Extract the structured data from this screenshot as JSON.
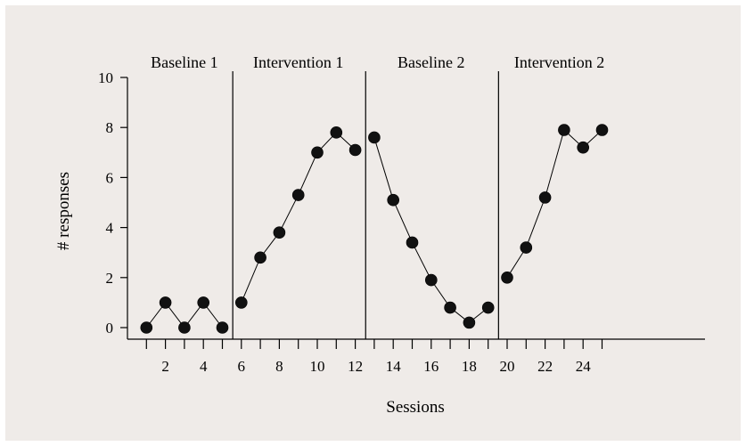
{
  "chart_data": {
    "type": "line",
    "title": "",
    "xlabel": "Sessions",
    "ylabel": "# responses",
    "xlim": [
      0,
      26
    ],
    "ylim": [
      0,
      10
    ],
    "x_ticks": [
      2,
      4,
      6,
      8,
      10,
      12,
      14,
      16,
      18,
      20,
      22,
      24
    ],
    "y_ticks": [
      0,
      2,
      4,
      6,
      8,
      10
    ],
    "phases": [
      {
        "name": "Baseline 1",
        "start": 1,
        "end": 5
      },
      {
        "name": "Intervention 1",
        "start": 6,
        "end": 12
      },
      {
        "name": "Baseline 2",
        "start": 13,
        "end": 19
      },
      {
        "name": "Intervention 2",
        "start": 20,
        "end": 25
      }
    ],
    "phase_boundaries": [
      5.5,
      12.5,
      19.5
    ],
    "series": [
      {
        "x": [
          1,
          2,
          3,
          4,
          5
        ],
        "values": [
          0,
          1,
          0,
          1,
          0
        ]
      },
      {
        "x": [
          6,
          7,
          8,
          9,
          10,
          11,
          12
        ],
        "values": [
          1,
          2.8,
          3.8,
          5.3,
          7,
          7.8,
          7.1
        ]
      },
      {
        "x": [
          13,
          14,
          15,
          16,
          17,
          18,
          19
        ],
        "values": [
          7.6,
          5.1,
          3.4,
          1.9,
          0.8,
          0.2,
          0.8
        ]
      },
      {
        "x": [
          20,
          21,
          22,
          23,
          24,
          25
        ],
        "values": [
          2,
          3.2,
          5.2,
          7.9,
          7.2,
          7.9
        ]
      }
    ],
    "grid": false,
    "legend": "none"
  }
}
